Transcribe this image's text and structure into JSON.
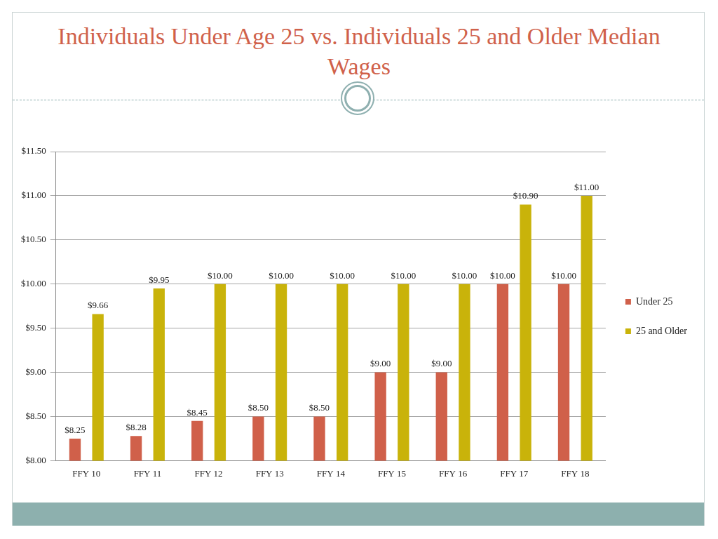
{
  "chart_data": {
    "type": "bar",
    "title": "Individuals Under Age 25 vs. Individuals 25 and Older Median Wages",
    "categories": [
      "FFY 10",
      "FFY 11",
      "FFY 12",
      "FFY 13",
      "FFY 14",
      "FFY 15",
      "FFY 16",
      "FFY 17",
      "FFY 18"
    ],
    "series": [
      {
        "name": "Under 25",
        "color": "#d0604a",
        "values": [
          8.25,
          8.28,
          8.45,
          8.5,
          8.5,
          9.0,
          9.0,
          10.0,
          10.0
        ],
        "value_labels": [
          "$8.25",
          "$8.28",
          "$8.45",
          "$8.50",
          "$8.50",
          "$9.00",
          "$9.00",
          "$10.00",
          "$10.00"
        ]
      },
      {
        "name": "25 and Older",
        "color": "#c9b30a",
        "values": [
          9.66,
          9.95,
          10.0,
          10.0,
          10.0,
          10.0,
          10.0,
          10.9,
          11.0
        ],
        "value_labels": [
          "$9.66",
          "$9.95",
          "$10.00",
          "$10.00",
          "$10.00",
          "$10.00",
          "$10.00",
          "$10.90",
          "$11.00"
        ]
      }
    ],
    "ylim": [
      8,
      11.5
    ],
    "yticks": [
      {
        "value": 8,
        "label": "$8.00"
      },
      {
        "value": 8.5,
        "label": "$8.50"
      },
      {
        "value": 9,
        "label": "$9.00"
      },
      {
        "value": 9.5,
        "label": "$9.50"
      },
      {
        "value": 10,
        "label": "$10.00"
      },
      {
        "value": 10.5,
        "label": "$10.50"
      },
      {
        "value": 11,
        "label": "$11.00"
      },
      {
        "value": 11.5,
        "label": "$11.50"
      }
    ],
    "grid": true,
    "legend": "right",
    "data_labels": true
  }
}
